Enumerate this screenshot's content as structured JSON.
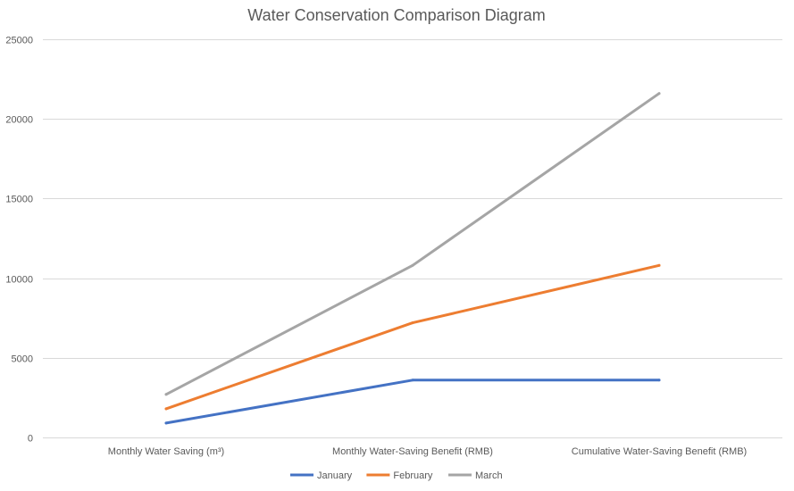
{
  "chart_data": {
    "type": "line",
    "title": "Water Conservation Comparison Diagram",
    "xlabel": "",
    "ylabel": "",
    "ylim": [
      0,
      25000
    ],
    "yticks": [
      0,
      5000,
      10000,
      15000,
      20000,
      25000
    ],
    "grid": true,
    "legend_position": "bottom",
    "categories": [
      "Monthly Water Saving (m³)",
      "Monthly Water-Saving Benefit (RMB)",
      "Cumulative Water-Saving Benefit (RMB)"
    ],
    "series": [
      {
        "name": "January",
        "color": "#4472c4",
        "values": [
          900,
          3600,
          3600
        ]
      },
      {
        "name": "February",
        "color": "#ed7d31",
        "values": [
          1800,
          7200,
          10800
        ]
      },
      {
        "name": "March",
        "color": "#a5a5a5",
        "values": [
          2700,
          10800,
          21600
        ]
      }
    ]
  }
}
